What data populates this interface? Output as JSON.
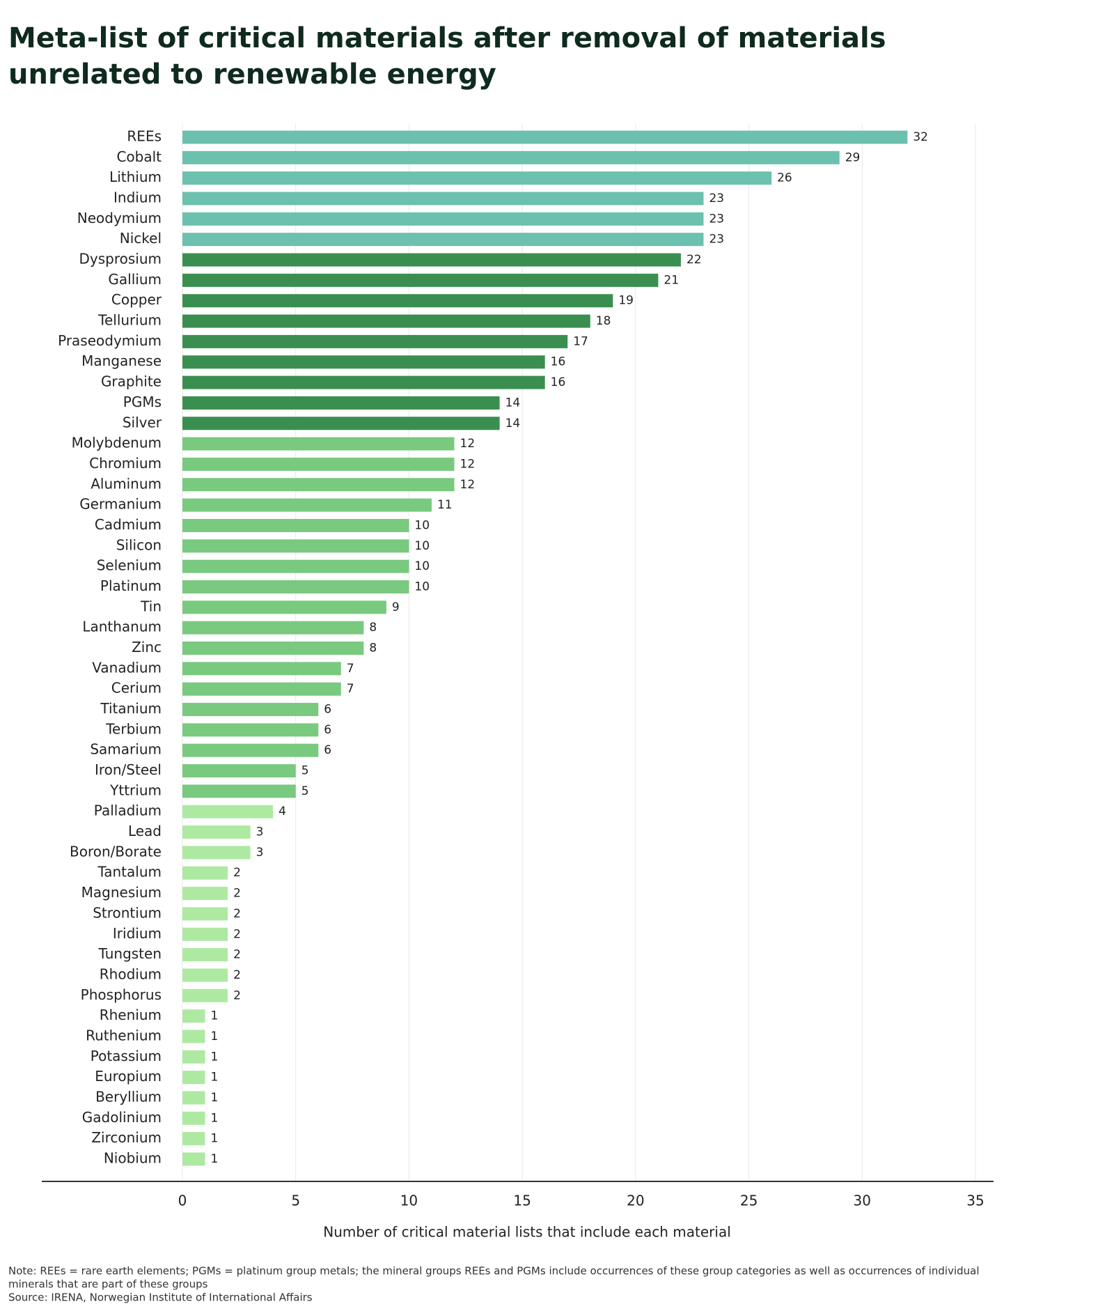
{
  "chart_data": {
    "type": "bar",
    "orientation": "horizontal",
    "title": [
      "Meta-list of critical materials after removal of materials",
      "unrelated to renewable energy"
    ],
    "x_label": "Number of critical material lists that include each material",
    "categories": [
      "REEs",
      "Cobalt",
      "Lithium",
      "Indium",
      "Neodymium",
      "Nickel",
      "Dysprosium",
      "Gallium",
      "Copper",
      "Tellurium",
      "Praseodymium",
      "Manganese",
      "Graphite",
      "PGMs",
      "Silver",
      "Molybdenum",
      "Chromium",
      "Aluminum",
      "Germanium",
      "Cadmium",
      "Silicon",
      "Selenium",
      "Platinum",
      "Tin",
      "Lanthanum",
      "Zinc",
      "Vanadium",
      "Cerium",
      "Titanium",
      "Terbium",
      "Samarium",
      "Iron/Steel",
      "Yttrium",
      "Palladium",
      "Lead",
      "Boron/Borate",
      "Tantalum",
      "Magnesium",
      "Strontium",
      "Iridium",
      "Tungsten",
      "Rhodium",
      "Phosphorus",
      "Rhenium",
      "Ruthenium",
      "Potassium",
      "Europium",
      "Beryllium",
      "Gadolinium",
      "Zirconium",
      "Niobium"
    ],
    "values": [
      32,
      29,
      26,
      23,
      23,
      23,
      22,
      21,
      19,
      18,
      17,
      16,
      16,
      14,
      14,
      12,
      12,
      12,
      11,
      10,
      10,
      10,
      10,
      9,
      8,
      8,
      7,
      7,
      6,
      6,
      6,
      5,
      5,
      4,
      3,
      3,
      2,
      2,
      2,
      2,
      2,
      2,
      2,
      1,
      1,
      1,
      1,
      1,
      1,
      1,
      1
    ],
    "colors": [
      "#6cc0ae",
      "#6cc0ae",
      "#6cc0ae",
      "#6cc0ae",
      "#6cc0ae",
      "#6cc0ae",
      "#3a8f50",
      "#3a8f50",
      "#3a8f50",
      "#3a8f50",
      "#3a8f50",
      "#3a8f50",
      "#3a8f50",
      "#3a8f50",
      "#3a8f50",
      "#79c97f",
      "#79c97f",
      "#79c97f",
      "#79c97f",
      "#79c97f",
      "#79c97f",
      "#79c97f",
      "#79c97f",
      "#79c97f",
      "#79c97f",
      "#79c97f",
      "#79c97f",
      "#79c97f",
      "#79c97f",
      "#79c97f",
      "#79c97f",
      "#79c97f",
      "#79c97f",
      "#aee9a2",
      "#aee9a2",
      "#aee9a2",
      "#aee9a2",
      "#aee9a2",
      "#aee9a2",
      "#aee9a2",
      "#aee9a2",
      "#aee9a2",
      "#aee9a2",
      "#aee9a2",
      "#aee9a2",
      "#aee9a2",
      "#aee9a2",
      "#aee9a2",
      "#aee9a2",
      "#aee9a2",
      "#aee9a2"
    ],
    "xlim": [
      0,
      35
    ],
    "xticks": [
      0,
      5,
      10,
      15,
      20,
      25,
      30,
      35
    ],
    "grid": true,
    "notes": [
      "Note: REEs = rare earth elements; PGMs = platinum group metals; the mineral groups REEs and PGMs include occurrences of these group categories as well as occurrences of individual",
      "minerals that are part of these groups"
    ],
    "source": "Source: IRENA, Norwegian Institute of International Affairs"
  }
}
